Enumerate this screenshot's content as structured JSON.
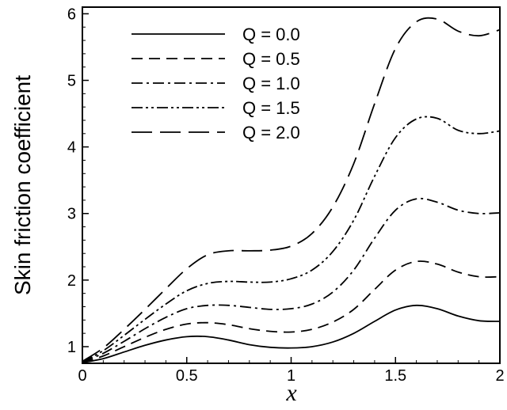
{
  "chart_data": {
    "type": "line",
    "title": "",
    "xlabel": "x",
    "ylabel": "Skin friction coefficient",
    "xlim": [
      0,
      2
    ],
    "ylim": [
      0.75,
      6.1
    ],
    "xticks": [
      0,
      0.5,
      1,
      1.5,
      2
    ],
    "xtick_labels": [
      "0",
      "0.5",
      "1",
      "1.5",
      "2"
    ],
    "yticks": [
      1,
      2,
      3,
      4,
      5,
      6
    ],
    "ytick_labels": [
      "1",
      "2",
      "3",
      "4",
      "5",
      "6"
    ],
    "grid": false,
    "legend_position": "top-left",
    "x": [
      0,
      0.1,
      0.2,
      0.3,
      0.4,
      0.5,
      0.6,
      0.7,
      0.8,
      0.9,
      1.0,
      1.1,
      1.2,
      1.3,
      1.4,
      1.5,
      1.6,
      1.7,
      1.8,
      1.9,
      2.0
    ],
    "series": [
      {
        "name": "Q = 0.0",
        "dash": "solid",
        "values": [
          0.76,
          0.82,
          0.92,
          1.02,
          1.1,
          1.15,
          1.15,
          1.1,
          1.03,
          0.99,
          0.98,
          1.0,
          1.07,
          1.2,
          1.38,
          1.55,
          1.62,
          1.57,
          1.46,
          1.39,
          1.38
        ]
      },
      {
        "name": "Q = 0.5",
        "dash": "short-dash",
        "values": [
          0.76,
          0.86,
          1.0,
          1.14,
          1.26,
          1.34,
          1.36,
          1.33,
          1.27,
          1.23,
          1.22,
          1.26,
          1.37,
          1.56,
          1.86,
          2.15,
          2.28,
          2.24,
          2.12,
          2.05,
          2.05
        ]
      },
      {
        "name": "Q = 1.0",
        "dash": "dash-dot",
        "values": [
          0.77,
          0.9,
          1.08,
          1.27,
          1.44,
          1.57,
          1.62,
          1.62,
          1.59,
          1.56,
          1.57,
          1.64,
          1.82,
          2.15,
          2.63,
          3.05,
          3.22,
          3.17,
          3.05,
          3.0,
          3.01
        ]
      },
      {
        "name": "Q = 1.5",
        "dash": "dash-dot-dot",
        "values": [
          0.77,
          0.94,
          1.17,
          1.41,
          1.64,
          1.84,
          1.95,
          1.98,
          1.97,
          1.97,
          2.02,
          2.15,
          2.43,
          2.9,
          3.56,
          4.14,
          4.42,
          4.43,
          4.25,
          4.2,
          4.24
        ]
      },
      {
        "name": "Q = 2.0",
        "dash": "long-dash",
        "values": [
          0.78,
          0.98,
          1.26,
          1.56,
          1.87,
          2.17,
          2.38,
          2.44,
          2.44,
          2.45,
          2.51,
          2.7,
          3.1,
          3.75,
          4.65,
          5.48,
          5.88,
          5.92,
          5.74,
          5.67,
          5.76
        ]
      }
    ]
  }
}
